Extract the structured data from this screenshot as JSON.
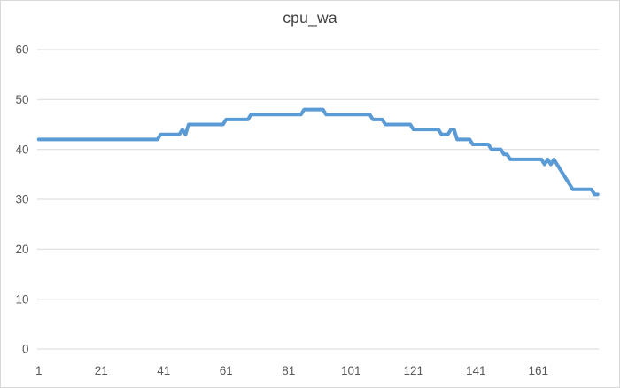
{
  "chart_data": {
    "type": "line",
    "title": "cpu_wa",
    "xlabel": "",
    "ylabel": "",
    "x_start": 1,
    "x_tick_labels": [
      "1",
      "21",
      "41",
      "61",
      "81",
      "101",
      "121",
      "141",
      "161"
    ],
    "y_ticks": [
      0,
      10,
      20,
      30,
      40,
      50,
      60
    ],
    "ylim": [
      0,
      60
    ],
    "grid": true,
    "legend_position": "none",
    "colors": {
      "line": "#5B9BD5",
      "grid": "#D9D9D9",
      "border": "#D9D9D9",
      "tick_labels": "#595959",
      "title": "#404040",
      "background": "#FFFFFF"
    },
    "series": [
      {
        "name": "cpu_wa",
        "color": "#5B9BD5",
        "values": [
          42,
          42,
          42,
          42,
          42,
          42,
          42,
          42,
          42,
          42,
          42,
          42,
          42,
          42,
          42,
          42,
          42,
          42,
          42,
          42,
          42,
          42,
          42,
          42,
          42,
          42,
          42,
          42,
          42,
          42,
          42,
          42,
          42,
          42,
          42,
          42,
          42,
          42,
          42,
          43,
          43,
          43,
          43,
          43,
          43,
          43,
          44,
          43,
          45,
          45,
          45,
          45,
          45,
          45,
          45,
          45,
          45,
          45,
          45,
          45,
          46,
          46,
          46,
          46,
          46,
          46,
          46,
          46,
          47,
          47,
          47,
          47,
          47,
          47,
          47,
          47,
          47,
          47,
          47,
          47,
          47,
          47,
          47,
          47,
          47,
          48,
          48,
          48,
          48,
          48,
          48,
          48,
          47,
          47,
          47,
          47,
          47,
          47,
          47,
          47,
          47,
          47,
          47,
          47,
          47,
          47,
          47,
          46,
          46,
          46,
          46,
          45,
          45,
          45,
          45,
          45,
          45,
          45,
          45,
          45,
          44,
          44,
          44,
          44,
          44,
          44,
          44,
          44,
          44,
          43,
          43,
          43,
          44,
          44,
          42,
          42,
          42,
          42,
          42,
          41,
          41,
          41,
          41,
          41,
          41,
          40,
          40,
          40,
          40,
          39,
          39,
          38,
          38,
          38,
          38,
          38,
          38,
          38,
          38,
          38,
          38,
          38,
          37,
          38,
          37,
          38,
          37,
          36,
          35,
          34,
          33,
          32,
          32,
          32,
          32,
          32,
          32,
          32,
          31,
          31
        ]
      }
    ]
  }
}
